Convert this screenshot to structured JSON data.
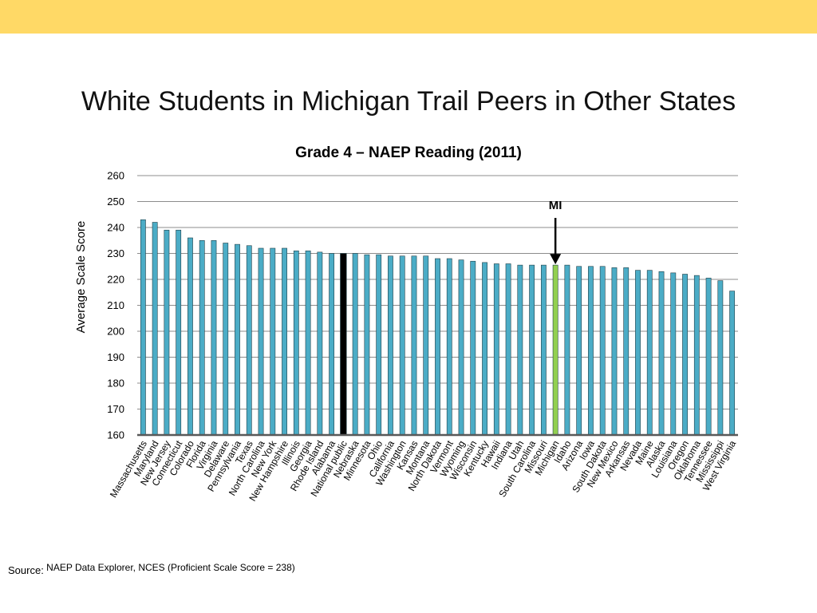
{
  "slide": {
    "title": "White Students in Michigan Trail Peers in Other States",
    "band_color": "#FFD966",
    "source_label": "Source:",
    "source_text": "NAEP Data Explorer, NCES (Proficient Scale Score = 238)"
  },
  "chart_data": {
    "type": "bar",
    "title": "Grade 4 – NAEP Reading (2011)",
    "xlabel": "",
    "ylabel": "Average Scale Score",
    "ylim": [
      160,
      260
    ],
    "yticks": [
      160,
      170,
      180,
      190,
      200,
      210,
      220,
      230,
      240,
      250,
      260
    ],
    "grid": true,
    "legend": "none",
    "colors": {
      "default": "#4BACC6",
      "highlight": "#92D050",
      "national": "#000000"
    },
    "categories": [
      "Massachusetts",
      "Maryland",
      "New Jersey",
      "Connecticut",
      "Colorado",
      "Florida",
      "Virginia",
      "Delaware",
      "Pennsylvania",
      "Texas",
      "North Carolina",
      "New York",
      "New Hampshire",
      "Illinois",
      "Georgia",
      "Rhode Island",
      "Alabama",
      "National public",
      "Nebraska",
      "Minnesota",
      "Ohio",
      "California",
      "Washington",
      "Kansas",
      "Montana",
      "North Dakota",
      "Vermont",
      "Wyoming",
      "Wisconsin",
      "Kentucky",
      "Hawaii",
      "Indiana",
      "Utah",
      "South Carolina",
      "Missouri",
      "Michigan",
      "Idaho",
      "Arizona",
      "Iowa",
      "South Dakota",
      "New Mexico",
      "Arkansas",
      "Nevada",
      "Maine",
      "Alaska",
      "Louisiana",
      "Oregon",
      "Oklahoma",
      "Tennessee",
      "Mississippi",
      "West Virginia"
    ],
    "values": [
      243,
      242,
      239,
      239,
      236,
      235,
      235,
      234,
      233.5,
      233,
      232,
      232,
      232,
      231,
      231,
      230.5,
      230,
      230,
      230,
      229.5,
      229.5,
      229,
      229,
      229,
      229,
      228,
      228,
      227.5,
      227,
      226.5,
      226,
      226,
      225.5,
      225.5,
      225.5,
      225.5,
      225.5,
      225,
      225,
      225,
      224.5,
      224.5,
      223.5,
      223.5,
      223,
      222.5,
      222,
      221.5,
      220.5,
      219.5,
      215.5
    ],
    "highlight_category": "Michigan",
    "national_category": "National public",
    "annotations": [
      {
        "text": "MI",
        "category": "Michigan",
        "arrow": true
      }
    ]
  }
}
